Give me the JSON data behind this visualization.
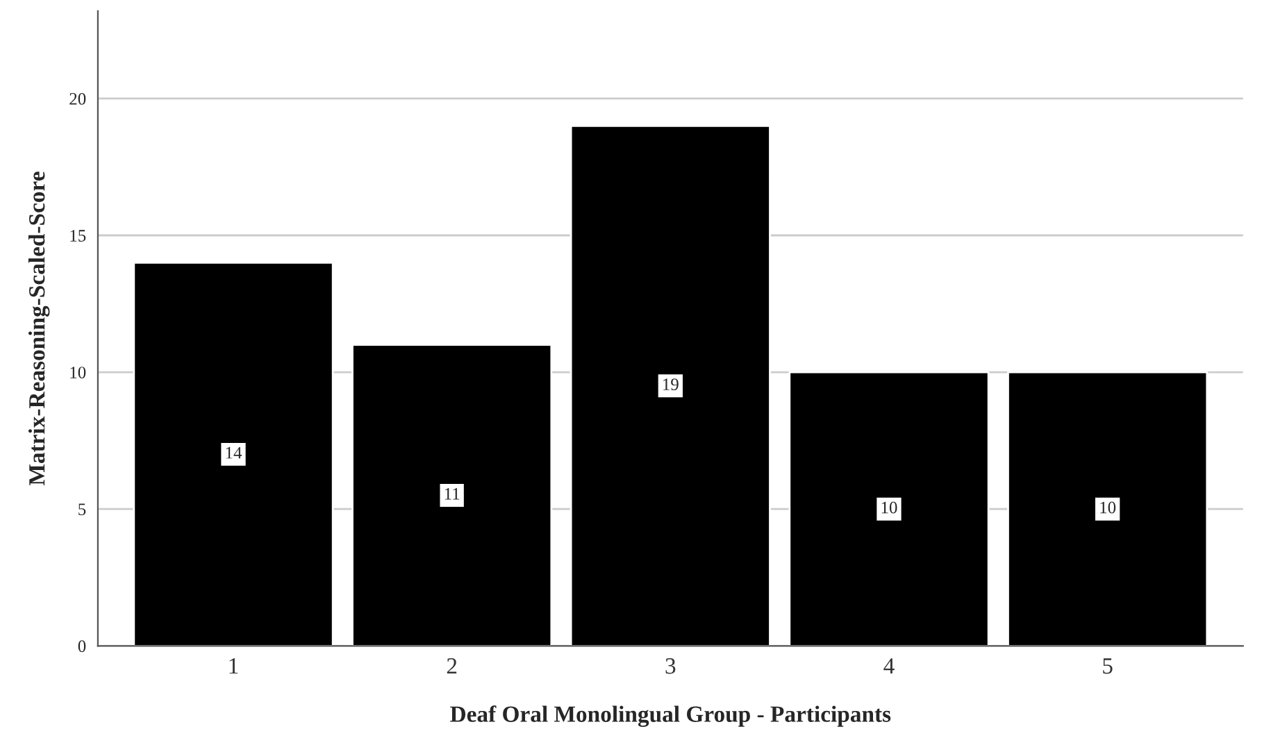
{
  "chart_data": {
    "type": "bar",
    "xlabel": "Deaf Oral Monolingual Group - Participants",
    "ylabel": "Matrix-Reasoning-Scaled-Score",
    "categories": [
      "1",
      "2",
      "3",
      "4",
      "5"
    ],
    "values": [
      14,
      11,
      19,
      10,
      10
    ],
    "color": "#000000",
    "ylim": [
      0,
      23.2
    ],
    "yticks": [
      0,
      5,
      10,
      15,
      20
    ],
    "grid": "y",
    "data_labels": true
  }
}
